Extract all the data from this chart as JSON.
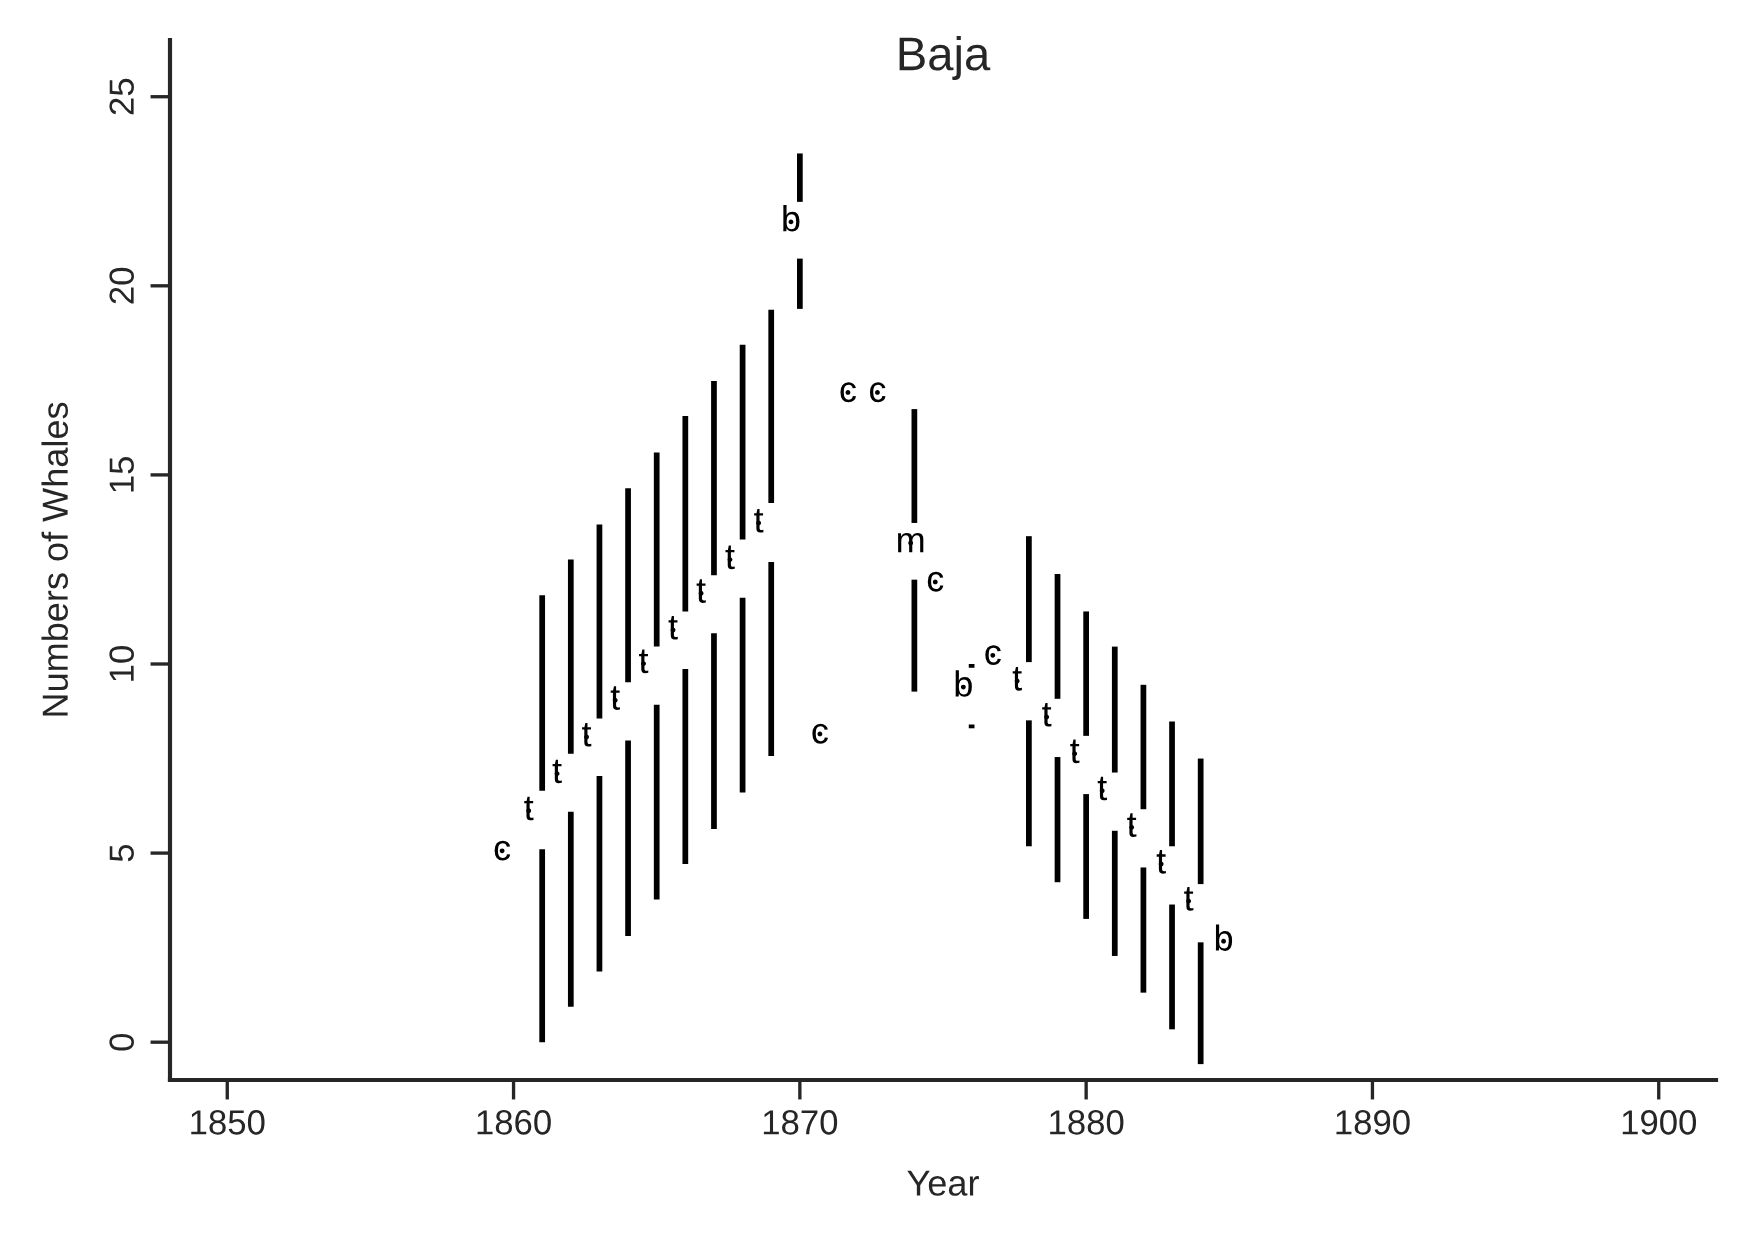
{
  "chart_data": {
    "type": "bar",
    "title": "Baja",
    "xlabel": "Year",
    "ylabel": "Numbers of Whales",
    "xlim": [
      1848,
      1902
    ],
    "xticks": [
      1850,
      1860,
      1870,
      1880,
      1890,
      1900
    ],
    "ylim": [
      -1,
      26.5
    ],
    "yticks": [
      0,
      5,
      10,
      15,
      20,
      25
    ],
    "grid": false,
    "series": [
      {
        "color": "#000000",
        "x": [
          1861,
          1862,
          1863,
          1864,
          1865,
          1866,
          1867,
          1868,
          1869,
          1870,
          1874,
          1876,
          1878,
          1879,
          1880,
          1881,
          1882,
          1883,
          1884
        ],
        "base": [
          6.65,
          7.63,
          8.56,
          9.52,
          10.46,
          11.39,
          12.35,
          13.29,
          14.26,
          22.22,
          13.73,
          9.9,
          10.05,
          9.08,
          8.1,
          7.13,
          6.16,
          5.18,
          4.18
        ],
        "values": [
          5.17,
          5.13,
          5.13,
          5.13,
          5.13,
          5.17,
          5.13,
          5.15,
          5.11,
          1.28,
          3.01,
          0.1,
          3.33,
          3.3,
          3.29,
          3.33,
          3.29,
          3.3,
          3.32
        ]
      },
      {
        "type": "scatter",
        "color": "#000000",
        "x": [
          1859.6,
          1860.53,
          1861.52,
          1862.55,
          1863.55,
          1864.54,
          1865.57,
          1866.55,
          1867.56,
          1868.56,
          1869.69,
          1870.7,
          1871.68,
          1872.71,
          1873.87,
          1874.73,
          1875.71,
          1876.74,
          1877.59,
          1878.62,
          1879.6,
          1880.56,
          1881.59,
          1882.62,
          1883.58,
          1884.8
        ],
        "values": [
          5.06,
          6.12,
          7.1,
          8.07,
          9.04,
          10.01,
          10.9,
          11.87,
          12.76,
          13.73,
          21.69,
          8.15,
          17.18,
          17.18,
          13.2,
          12.17,
          9.39,
          10.23,
          9.55,
          8.6,
          7.63,
          6.65,
          5.68,
          4.71,
          3.73,
          2.67
        ],
        "value_labels": [
          "c",
          "t",
          "t",
          "t",
          "t",
          "t",
          "t",
          "t",
          "t",
          "t",
          "b",
          "c",
          "c",
          "c",
          "m",
          "c",
          "b",
          "c",
          "t",
          "t",
          "t",
          "t",
          "t",
          "t",
          "t",
          "b"
        ]
      },
      {
        "color": "#000000",
        "x": [
          1861,
          1862,
          1863,
          1864,
          1865,
          1866,
          1867,
          1868,
          1869,
          1870,
          1874,
          1876,
          1878,
          1879,
          1880,
          1881,
          1882,
          1883,
          1884
        ],
        "base": [
          0.0,
          0.94,
          1.87,
          2.81,
          3.77,
          4.71,
          5.64,
          6.6,
          7.57,
          19.39,
          9.27,
          8.3,
          5.18,
          4.23,
          3.26,
          2.28,
          1.31,
          0.34,
          -0.58
        ],
        "values": [
          5.1,
          5.15,
          5.17,
          5.17,
          5.15,
          5.16,
          5.17,
          5.15,
          5.13,
          1.33,
          2.96,
          0.1,
          3.33,
          3.31,
          3.3,
          3.31,
          3.31,
          3.3,
          3.22
        ]
      }
    ],
    "marker": "none"
  }
}
